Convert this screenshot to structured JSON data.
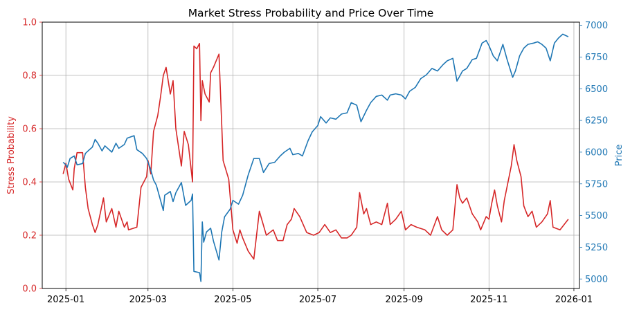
{
  "chart_data": {
    "type": "line",
    "title": "Market Stress Probability and Price Over Time",
    "xlabel": "",
    "x_ticks": [
      "2025-01",
      "2025-03",
      "2025-05",
      "2025-07",
      "2025-09",
      "2025-11",
      "2026-01"
    ],
    "xlim": [
      "2024-12-15",
      "2026-01-05"
    ],
    "grid": true,
    "left_axis": {
      "label": "Stress Probability",
      "color": "#d62728",
      "ylim": [
        0.0,
        1.0
      ],
      "ticks": [
        "0.0",
        "0.2",
        "0.4",
        "0.6",
        "0.8",
        "1.0"
      ]
    },
    "right_axis": {
      "label": "Price",
      "color": "#1f77b4",
      "ylim": [
        4925,
        7025
      ],
      "ticks": [
        "5000",
        "5250",
        "5500",
        "5750",
        "6000",
        "6250",
        "6500",
        "6750",
        "7000"
      ]
    },
    "series": [
      {
        "axis": "left",
        "color": "#d62728",
        "points": [
          [
            "2024-12-30",
            0.43
          ],
          [
            "2025-01-01",
            0.47
          ],
          [
            "2025-01-03",
            0.41
          ],
          [
            "2025-01-06",
            0.37
          ],
          [
            "2025-01-07",
            0.45
          ],
          [
            "2025-01-09",
            0.51
          ],
          [
            "2025-01-13",
            0.51
          ],
          [
            "2025-01-15",
            0.38
          ],
          [
            "2025-01-17",
            0.3
          ],
          [
            "2025-01-20",
            0.24
          ],
          [
            "2025-01-22",
            0.21
          ],
          [
            "2025-01-24",
            0.24
          ],
          [
            "2025-01-28",
            0.34
          ],
          [
            "2025-01-30",
            0.25
          ],
          [
            "2025-02-03",
            0.3
          ],
          [
            "2025-02-06",
            0.23
          ],
          [
            "2025-02-08",
            0.29
          ],
          [
            "2025-02-12",
            0.23
          ],
          [
            "2025-02-14",
            0.25
          ],
          [
            "2025-02-15",
            0.22
          ],
          [
            "2025-02-21",
            0.23
          ],
          [
            "2025-02-24",
            0.38
          ],
          [
            "2025-02-28",
            0.42
          ],
          [
            "2025-03-01",
            0.48
          ],
          [
            "2025-03-03",
            0.43
          ],
          [
            "2025-03-05",
            0.59
          ],
          [
            "2025-03-08",
            0.65
          ],
          [
            "2025-03-10",
            0.72
          ],
          [
            "2025-03-12",
            0.8
          ],
          [
            "2025-03-14",
            0.83
          ],
          [
            "2025-03-17",
            0.73
          ],
          [
            "2025-03-19",
            0.78
          ],
          [
            "2025-03-21",
            0.6
          ],
          [
            "2025-03-25",
            0.46
          ],
          [
            "2025-03-27",
            0.59
          ],
          [
            "2025-03-30",
            0.54
          ],
          [
            "2025-04-02",
            0.4
          ],
          [
            "2025-04-03",
            0.91
          ],
          [
            "2025-04-05",
            0.9
          ],
          [
            "2025-04-07",
            0.92
          ],
          [
            "2025-04-08",
            0.63
          ],
          [
            "2025-04-09",
            0.78
          ],
          [
            "2025-04-11",
            0.73
          ],
          [
            "2025-04-14",
            0.7
          ],
          [
            "2025-04-15",
            0.81
          ],
          [
            "2025-04-17",
            0.83
          ],
          [
            "2025-04-21",
            0.88
          ],
          [
            "2025-04-24",
            0.48
          ],
          [
            "2025-04-28",
            0.41
          ],
          [
            "2025-05-01",
            0.22
          ],
          [
            "2025-05-04",
            0.17
          ],
          [
            "2025-05-06",
            0.22
          ],
          [
            "2025-05-08",
            0.19
          ],
          [
            "2025-05-12",
            0.14
          ],
          [
            "2025-05-16",
            0.11
          ],
          [
            "2025-05-20",
            0.29
          ],
          [
            "2025-05-25",
            0.2
          ],
          [
            "2025-05-30",
            0.22
          ],
          [
            "2025-06-02",
            0.18
          ],
          [
            "2025-06-06",
            0.18
          ],
          [
            "2025-06-09",
            0.24
          ],
          [
            "2025-06-12",
            0.26
          ],
          [
            "2025-06-14",
            0.3
          ],
          [
            "2025-06-18",
            0.27
          ],
          [
            "2025-06-23",
            0.21
          ],
          [
            "2025-06-28",
            0.2
          ],
          [
            "2025-07-02",
            0.21
          ],
          [
            "2025-07-06",
            0.24
          ],
          [
            "2025-07-10",
            0.21
          ],
          [
            "2025-07-14",
            0.22
          ],
          [
            "2025-07-18",
            0.19
          ],
          [
            "2025-07-22",
            0.19
          ],
          [
            "2025-07-25",
            0.2
          ],
          [
            "2025-07-29",
            0.23
          ],
          [
            "2025-07-31",
            0.36
          ],
          [
            "2025-08-03",
            0.28
          ],
          [
            "2025-08-05",
            0.3
          ],
          [
            "2025-08-08",
            0.24
          ],
          [
            "2025-08-12",
            0.25
          ],
          [
            "2025-08-16",
            0.24
          ],
          [
            "2025-08-20",
            0.32
          ],
          [
            "2025-08-22",
            0.24
          ],
          [
            "2025-08-26",
            0.26
          ],
          [
            "2025-08-30",
            0.29
          ],
          [
            "2025-09-02",
            0.22
          ],
          [
            "2025-09-06",
            0.24
          ],
          [
            "2025-09-10",
            0.23
          ],
          [
            "2025-09-16",
            0.22
          ],
          [
            "2025-09-20",
            0.2
          ],
          [
            "2025-09-25",
            0.27
          ],
          [
            "2025-09-28",
            0.22
          ],
          [
            "2025-10-02",
            0.2
          ],
          [
            "2025-10-06",
            0.22
          ],
          [
            "2025-10-09",
            0.39
          ],
          [
            "2025-10-11",
            0.34
          ],
          [
            "2025-10-13",
            0.32
          ],
          [
            "2025-10-16",
            0.34
          ],
          [
            "2025-10-20",
            0.28
          ],
          [
            "2025-10-24",
            0.25
          ],
          [
            "2025-10-26",
            0.22
          ],
          [
            "2025-10-30",
            0.27
          ],
          [
            "2025-11-01",
            0.26
          ],
          [
            "2025-11-03",
            0.32
          ],
          [
            "2025-11-05",
            0.37
          ],
          [
            "2025-11-07",
            0.31
          ],
          [
            "2025-11-10",
            0.25
          ],
          [
            "2025-11-12",
            0.33
          ],
          [
            "2025-11-17",
            0.46
          ],
          [
            "2025-11-19",
            0.54
          ],
          [
            "2025-11-21",
            0.48
          ],
          [
            "2025-11-24",
            0.42
          ],
          [
            "2025-11-26",
            0.31
          ],
          [
            "2025-11-29",
            0.27
          ],
          [
            "2025-12-02",
            0.29
          ],
          [
            "2025-12-05",
            0.23
          ],
          [
            "2025-12-09",
            0.25
          ],
          [
            "2025-12-13",
            0.28
          ],
          [
            "2025-12-15",
            0.33
          ],
          [
            "2025-12-17",
            0.23
          ],
          [
            "2025-12-22",
            0.22
          ],
          [
            "2025-12-28",
            0.26
          ]
        ]
      },
      {
        "axis": "right",
        "color": "#1f77b4",
        "points": [
          [
            "2024-12-30",
            5920
          ],
          [
            "2025-01-01",
            5900
          ],
          [
            "2025-01-02",
            5880
          ],
          [
            "2025-01-04",
            5950
          ],
          [
            "2025-01-07",
            5970
          ],
          [
            "2025-01-09",
            5900
          ],
          [
            "2025-01-13",
            5910
          ],
          [
            "2025-01-15",
            5990
          ],
          [
            "2025-01-17",
            6010
          ],
          [
            "2025-01-20",
            6040
          ],
          [
            "2025-01-22",
            6100
          ],
          [
            "2025-01-24",
            6070
          ],
          [
            "2025-01-27",
            6010
          ],
          [
            "2025-01-29",
            6050
          ],
          [
            "2025-02-03",
            6000
          ],
          [
            "2025-02-06",
            6070
          ],
          [
            "2025-02-08",
            6030
          ],
          [
            "2025-02-12",
            6060
          ],
          [
            "2025-02-14",
            6110
          ],
          [
            "2025-02-19",
            6130
          ],
          [
            "2025-02-21",
            6020
          ],
          [
            "2025-02-25",
            5990
          ],
          [
            "2025-02-28",
            5950
          ],
          [
            "2025-03-03",
            5860
          ],
          [
            "2025-03-05",
            5780
          ],
          [
            "2025-03-07",
            5740
          ],
          [
            "2025-03-10",
            5620
          ],
          [
            "2025-03-12",
            5540
          ],
          [
            "2025-03-13",
            5660
          ],
          [
            "2025-03-17",
            5690
          ],
          [
            "2025-03-19",
            5610
          ],
          [
            "2025-03-21",
            5680
          ],
          [
            "2025-03-25",
            5760
          ],
          [
            "2025-03-28",
            5580
          ],
          [
            "2025-04-01",
            5620
          ],
          [
            "2025-04-02",
            5670
          ],
          [
            "2025-04-03",
            5060
          ],
          [
            "2025-04-07",
            5050
          ],
          [
            "2025-04-08",
            4980
          ],
          [
            "2025-04-09",
            5450
          ],
          [
            "2025-04-10",
            5290
          ],
          [
            "2025-04-12",
            5370
          ],
          [
            "2025-04-15",
            5400
          ],
          [
            "2025-04-17",
            5300
          ],
          [
            "2025-04-21",
            5150
          ],
          [
            "2025-04-23",
            5370
          ],
          [
            "2025-04-25",
            5490
          ],
          [
            "2025-04-29",
            5550
          ],
          [
            "2025-05-01",
            5620
          ],
          [
            "2025-05-05",
            5590
          ],
          [
            "2025-05-08",
            5660
          ],
          [
            "2025-05-12",
            5820
          ],
          [
            "2025-05-16",
            5950
          ],
          [
            "2025-05-20",
            5950
          ],
          [
            "2025-05-23",
            5840
          ],
          [
            "2025-05-27",
            5910
          ],
          [
            "2025-05-31",
            5920
          ],
          [
            "2025-06-04",
            5970
          ],
          [
            "2025-06-07",
            6000
          ],
          [
            "2025-06-11",
            6030
          ],
          [
            "2025-06-13",
            5980
          ],
          [
            "2025-06-17",
            5990
          ],
          [
            "2025-06-20",
            5970
          ],
          [
            "2025-06-24",
            6090
          ],
          [
            "2025-06-27",
            6160
          ],
          [
            "2025-07-01",
            6210
          ],
          [
            "2025-07-03",
            6280
          ],
          [
            "2025-07-07",
            6230
          ],
          [
            "2025-07-10",
            6270
          ],
          [
            "2025-07-14",
            6260
          ],
          [
            "2025-07-18",
            6300
          ],
          [
            "2025-07-22",
            6310
          ],
          [
            "2025-07-25",
            6390
          ],
          [
            "2025-07-29",
            6370
          ],
          [
            "2025-08-01",
            6240
          ],
          [
            "2025-08-05",
            6330
          ],
          [
            "2025-08-08",
            6390
          ],
          [
            "2025-08-12",
            6440
          ],
          [
            "2025-08-16",
            6450
          ],
          [
            "2025-08-20",
            6410
          ],
          [
            "2025-08-22",
            6450
          ],
          [
            "2025-08-26",
            6460
          ],
          [
            "2025-08-30",
            6450
          ],
          [
            "2025-09-02",
            6420
          ],
          [
            "2025-09-05",
            6480
          ],
          [
            "2025-09-09",
            6510
          ],
          [
            "2025-09-13",
            6580
          ],
          [
            "2025-09-17",
            6610
          ],
          [
            "2025-09-21",
            6660
          ],
          [
            "2025-09-25",
            6640
          ],
          [
            "2025-09-29",
            6690
          ],
          [
            "2025-10-02",
            6720
          ],
          [
            "2025-10-06",
            6740
          ],
          [
            "2025-10-09",
            6560
          ],
          [
            "2025-10-13",
            6640
          ],
          [
            "2025-10-16",
            6660
          ],
          [
            "2025-10-20",
            6730
          ],
          [
            "2025-10-23",
            6740
          ],
          [
            "2025-10-27",
            6860
          ],
          [
            "2025-10-30",
            6880
          ],
          [
            "2025-11-01",
            6840
          ],
          [
            "2025-11-04",
            6760
          ],
          [
            "2025-11-07",
            6720
          ],
          [
            "2025-11-11",
            6850
          ],
          [
            "2025-11-14",
            6730
          ],
          [
            "2025-11-18",
            6590
          ],
          [
            "2025-11-20",
            6640
          ],
          [
            "2025-11-23",
            6760
          ],
          [
            "2025-11-26",
            6820
          ],
          [
            "2025-11-29",
            6850
          ],
          [
            "2025-12-03",
            6860
          ],
          [
            "2025-12-06",
            6870
          ],
          [
            "2025-12-09",
            6850
          ],
          [
            "2025-12-12",
            6820
          ],
          [
            "2025-12-15",
            6720
          ],
          [
            "2025-12-18",
            6860
          ],
          [
            "2025-12-21",
            6900
          ],
          [
            "2025-12-24",
            6930
          ],
          [
            "2025-12-28",
            6910
          ]
        ]
      }
    ]
  }
}
